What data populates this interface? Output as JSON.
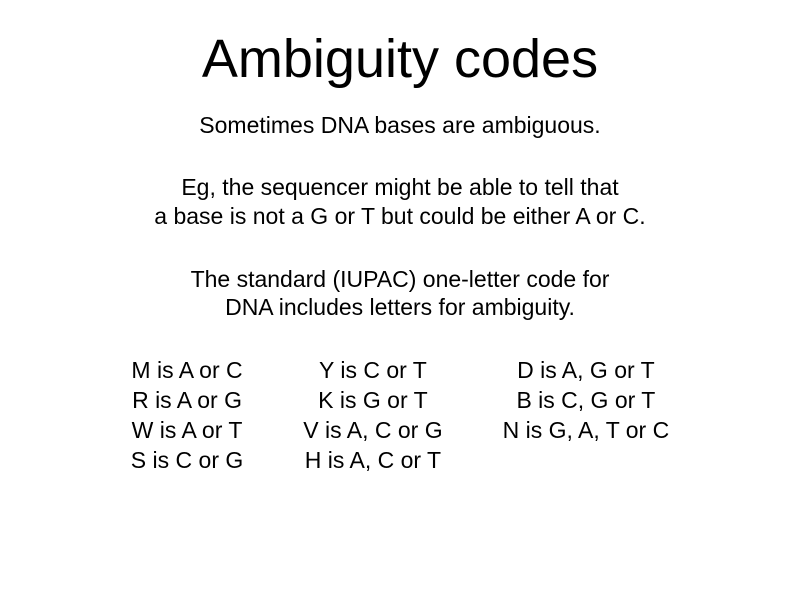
{
  "title": "Ambiguity codes",
  "subtitle": "Sometimes DNA bases are ambiguous.",
  "para1_line1": "Eg, the sequencer might be able to tell that",
  "para1_line2": "a base is not a G or T but could be either A or C.",
  "para2_line1": "The standard (IUPAC) one-letter code for",
  "para2_line2": "DNA includes letters for ambiguity.",
  "columns": [
    {
      "lines": [
        "M is A or C",
        "R is A or G",
        "W is A or T",
        "S is C or G"
      ]
    },
    {
      "lines": [
        "Y is C or T",
        "K is G or T",
        "V is A, C or G",
        "H is A, C or T"
      ]
    },
    {
      "lines": [
        "D is A, G or T",
        "B is C, G or T",
        "N is G, A, T or C"
      ]
    }
  ],
  "colors": {
    "background": "#ffffff",
    "text": "#000000"
  },
  "typography": {
    "font_family": "Arial",
    "title_fontsize": 54,
    "body_fontsize": 23,
    "title_weight": 400
  }
}
